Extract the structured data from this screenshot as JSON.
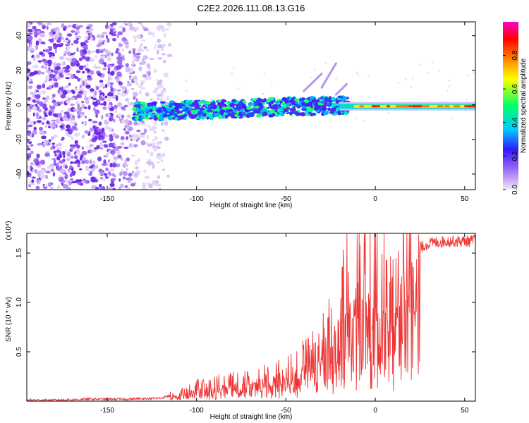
{
  "title": "C2E2.2026.111.08.13.G16",
  "chart_data": [
    {
      "type": "heatmap",
      "xlabel": "Height of straight line (km)",
      "ylabel": "Frequency (Hz)",
      "xlim": [
        -195,
        56
      ],
      "ylim": [
        -49,
        48
      ],
      "xticks": [
        -150,
        -100,
        -50,
        0,
        50
      ],
      "yticks": [
        -40,
        -20,
        0,
        20,
        40
      ],
      "colorbar": {
        "label": "Normalized spectral amplitude",
        "range": [
          0,
          1
        ],
        "ticks": [
          "0.0",
          "0.2",
          "0.4",
          "0.6",
          "0.8"
        ],
        "ticks_values": [
          0,
          0.2,
          0.4,
          0.6,
          0.8
        ],
        "colors": [
          "#e9dcf8",
          "#a070ff",
          "#3a22ff",
          "#00d8ff",
          "#00ff60",
          "#ffff00",
          "#ff6a00",
          "#ff0000",
          "#ff00cc"
        ]
      },
      "description_regions": {
        "noise_region_x": [
          -195,
          -115
        ],
        "signal_band_x": [
          -135,
          56
        ],
        "signal_band_center_hz": [
          -3,
          0
        ],
        "strong_signal_x": [
          -20,
          56
        ]
      }
    },
    {
      "type": "line",
      "xlabel": "Height of straight line (km)",
      "ylabel": "SNR (10 * v/v)",
      "y_multiplier": "(x10⁴)",
      "xlim": [
        -195,
        56
      ],
      "ylim": [
        0,
        1.7
      ],
      "xticks": [
        -150,
        -100,
        -50,
        0,
        50
      ],
      "yticks": [
        0.5,
        1.0,
        1.5
      ],
      "color": "#ee3333",
      "series": [
        {
          "name": "SNR",
          "x": [
            -195,
            -180,
            -160,
            -140,
            -120,
            -110,
            -100,
            -90,
            -80,
            -70,
            -60,
            -50,
            -45,
            -40,
            -35,
            -30,
            -25,
            -20,
            -18,
            -15,
            -12,
            -10,
            -5,
            0,
            5,
            10,
            12,
            15,
            20,
            25,
            30,
            40,
            50,
            56
          ],
          "y": [
            0.01,
            0.01,
            0.02,
            0.02,
            0.03,
            0.08,
            0.13,
            0.15,
            0.17,
            0.18,
            0.22,
            0.25,
            0.3,
            0.36,
            0.42,
            0.5,
            0.62,
            0.75,
            0.9,
            1.0,
            1.07,
            1.1,
            1.12,
            1.1,
            1.0,
            0.9,
            1.05,
            1.3,
            1.45,
            1.55,
            1.6,
            1.62,
            1.62,
            1.63
          ]
        }
      ]
    }
  ]
}
